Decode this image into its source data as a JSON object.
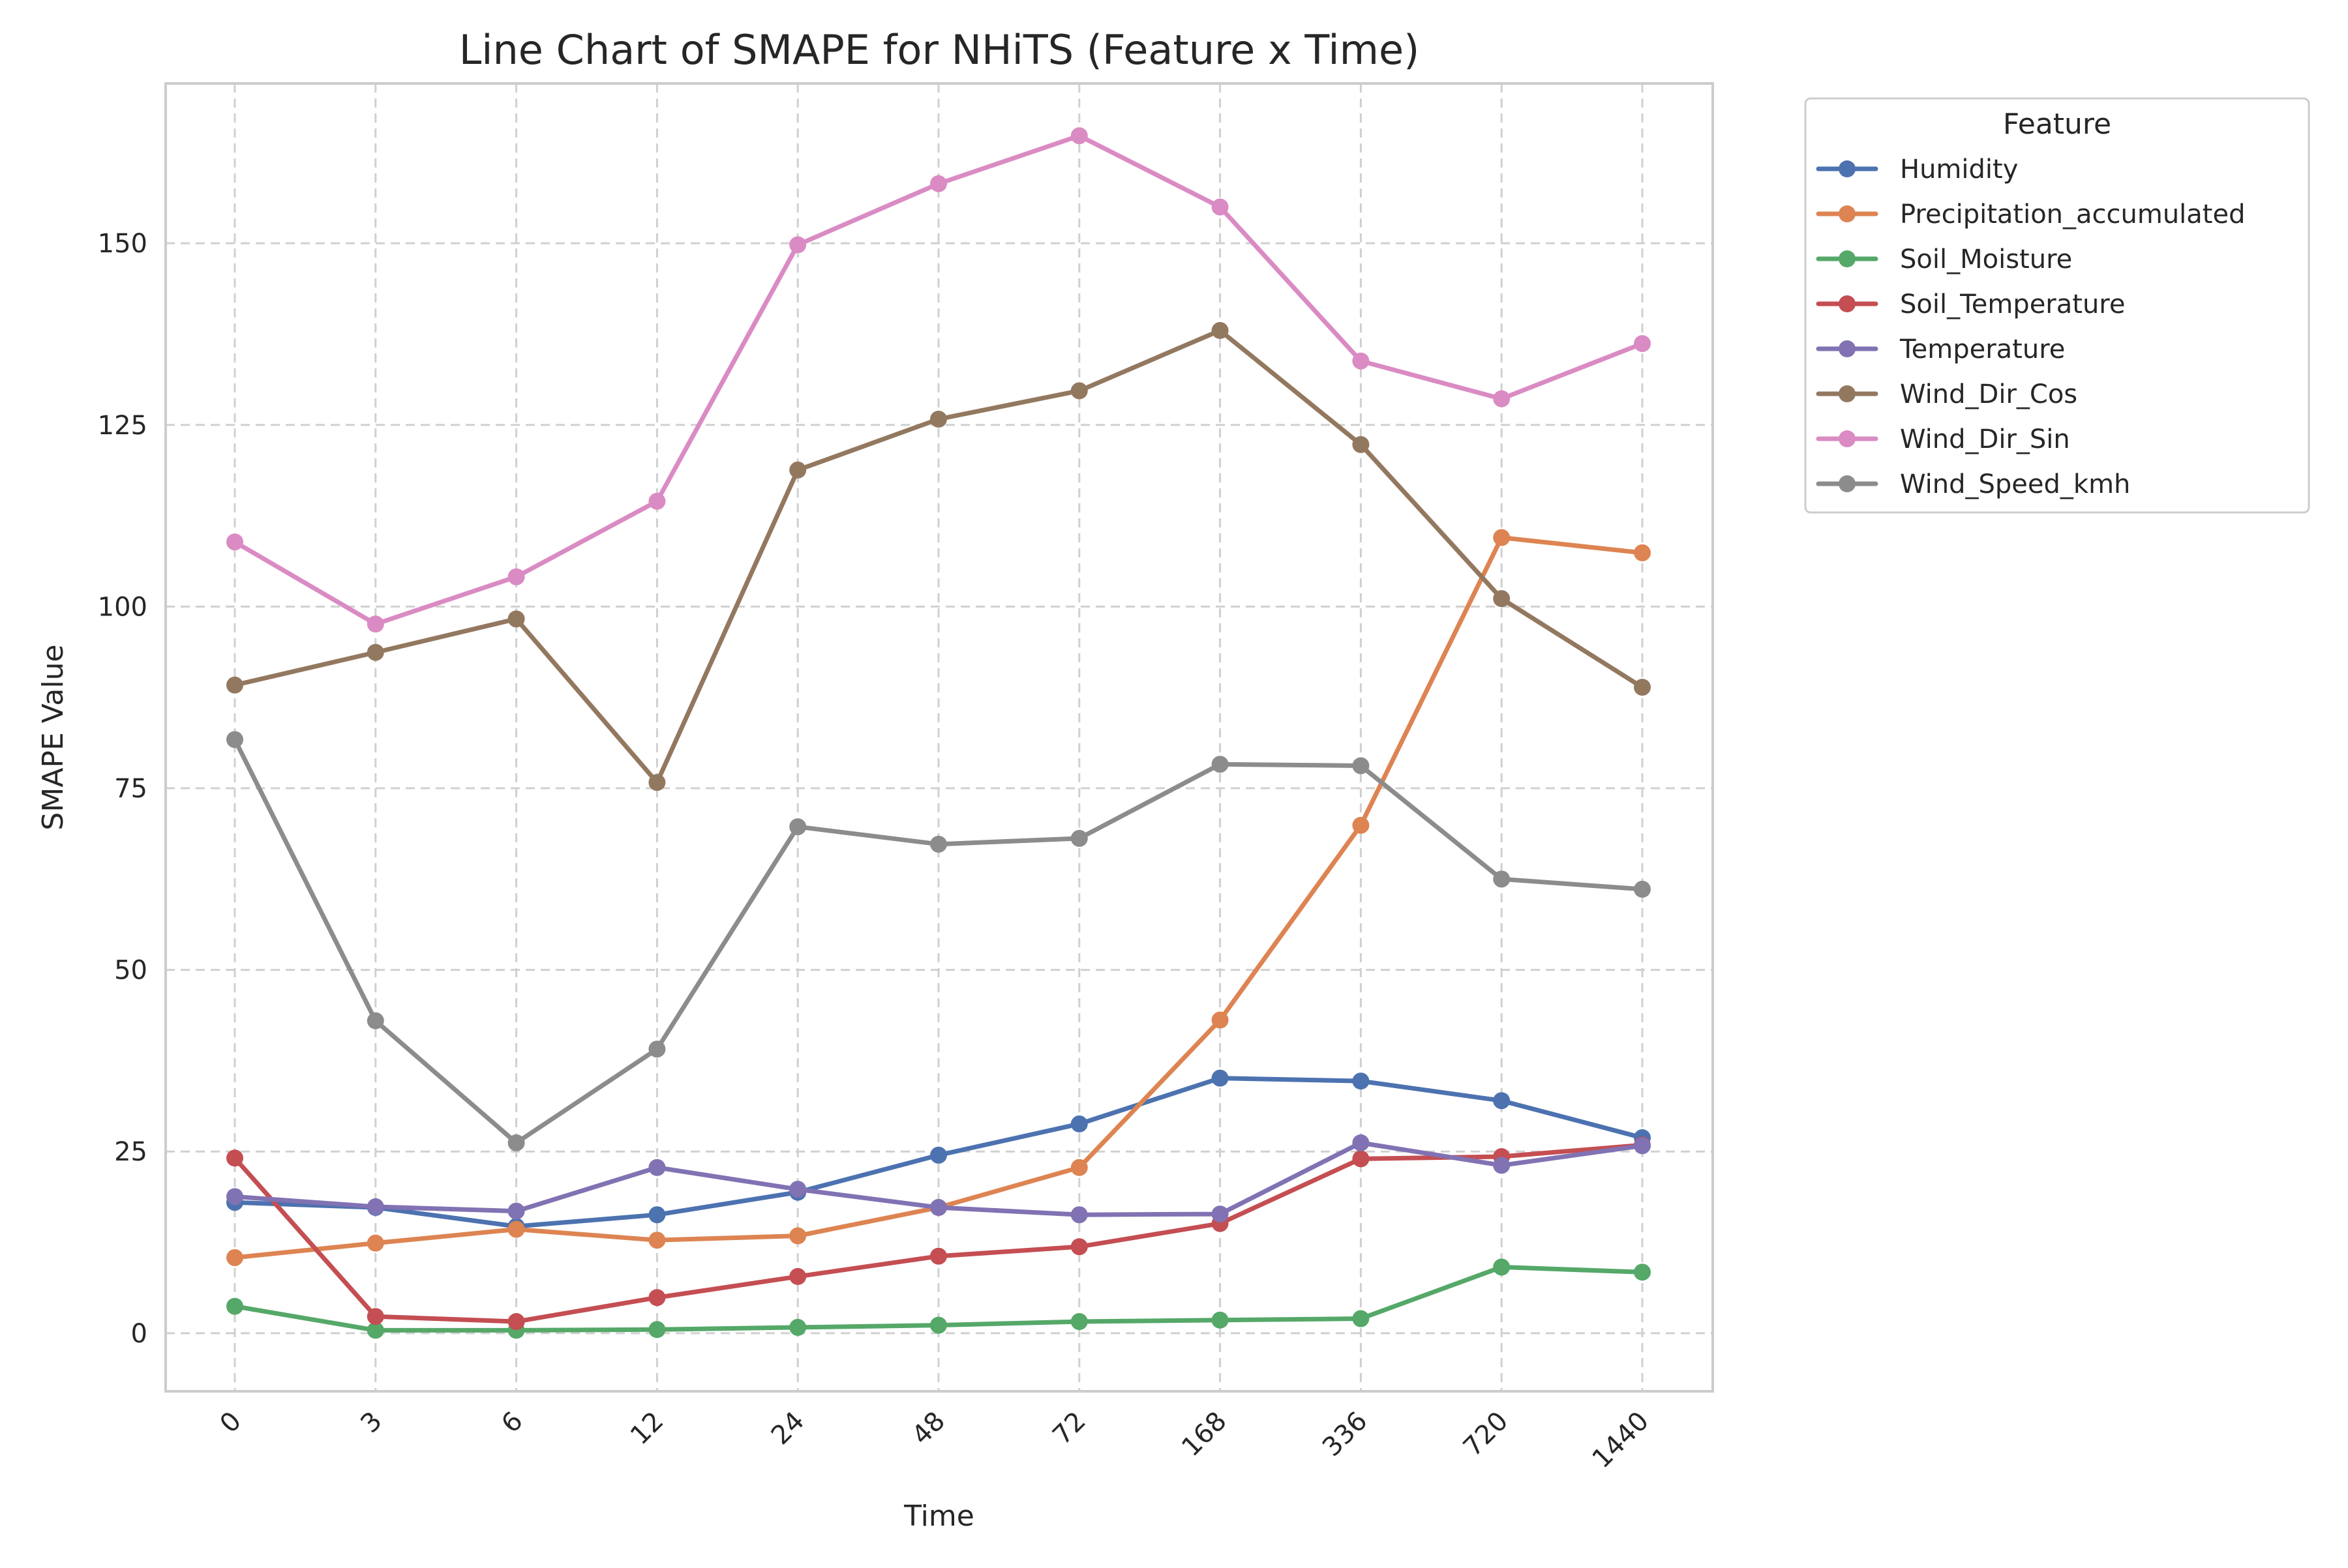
{
  "chart_data": {
    "type": "line",
    "title": "Line Chart of SMAPE for NHiTS (Feature x Time)",
    "xlabel": "Time",
    "ylabel": "SMAPE Value",
    "categories": [
      "0",
      "3",
      "6",
      "12",
      "24",
      "48",
      "72",
      "168",
      "336",
      "720",
      "1440"
    ],
    "ylim": [
      -8,
      172
    ],
    "yticks": [
      0,
      25,
      50,
      75,
      100,
      125,
      150
    ],
    "grid": true,
    "legend": {
      "title": "Feature",
      "placement": "outside-top-right"
    },
    "series": [
      {
        "name": "Humidity",
        "color": "#4c72b0",
        "values": [
          18.0,
          17.3,
          14.7,
          16.3,
          19.4,
          24.5,
          28.8,
          35.1,
          34.7,
          32.0,
          26.9
        ]
      },
      {
        "name": "Precipitation_accumulated",
        "color": "#dd8452",
        "values": [
          10.4,
          12.4,
          14.3,
          12.8,
          13.4,
          17.3,
          22.8,
          43.1,
          69.9,
          109.5,
          107.4
        ]
      },
      {
        "name": "Soil_Moisture",
        "color": "#55a868",
        "values": [
          3.7,
          0.4,
          0.4,
          0.5,
          0.8,
          1.1,
          1.6,
          1.8,
          2.0,
          9.1,
          8.4
        ]
      },
      {
        "name": "Soil_Temperature",
        "color": "#c44e52",
        "values": [
          24.1,
          2.3,
          1.6,
          4.9,
          7.8,
          10.6,
          11.9,
          15.1,
          24.0,
          24.3,
          25.9
        ]
      },
      {
        "name": "Temperature",
        "color": "#8172b3",
        "values": [
          18.8,
          17.4,
          16.8,
          22.8,
          19.8,
          17.3,
          16.3,
          16.4,
          26.2,
          23.1,
          25.8
        ]
      },
      {
        "name": "Wind_Dir_Cos",
        "color": "#937860",
        "values": [
          89.2,
          93.7,
          98.3,
          75.8,
          118.8,
          125.8,
          129.7,
          138.0,
          122.3,
          101.1,
          88.9
        ]
      },
      {
        "name": "Wind_Dir_Sin",
        "color": "#da8bc3",
        "values": [
          108.9,
          97.6,
          104.1,
          114.5,
          149.8,
          158.2,
          164.8,
          155.0,
          133.8,
          128.6,
          136.2
        ]
      },
      {
        "name": "Wind_Speed_kmh",
        "color": "#8c8c8c",
        "values": [
          81.7,
          43.0,
          26.2,
          39.1,
          69.7,
          67.3,
          68.1,
          78.3,
          78.1,
          62.5,
          61.1
        ]
      }
    ]
  }
}
